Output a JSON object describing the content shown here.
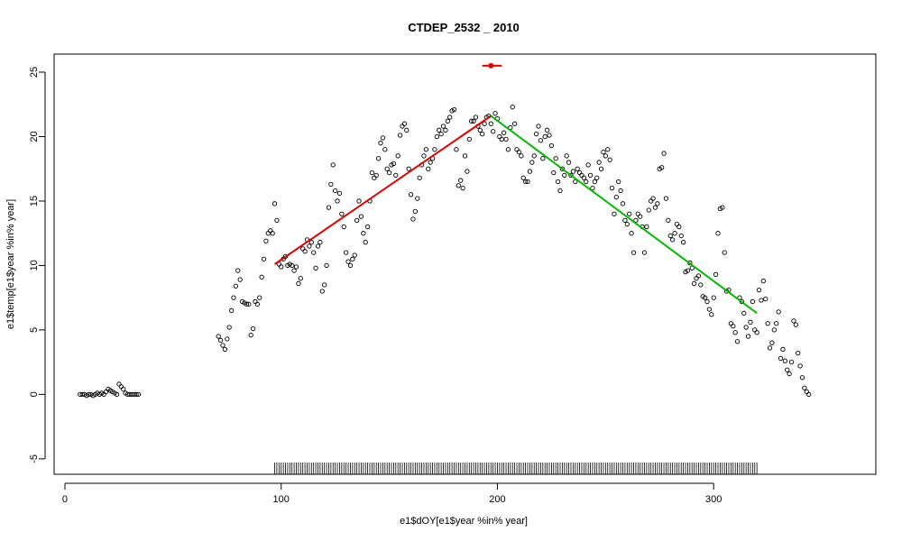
{
  "chart_data": {
    "type": "scatter",
    "title": "CTDEP_2532 _ 2010",
    "xlabel": "e1$dOY[e1$year %in% year]",
    "ylabel": "e1$temp[e1$year %in% year]",
    "xlim": [
      -5,
      375
    ],
    "ylim": [
      -6.2,
      26.4
    ],
    "x_ticks": [
      0,
      100,
      200,
      300
    ],
    "y_ticks": [
      -5,
      0,
      5,
      10,
      15,
      20,
      25
    ],
    "grid": false,
    "legend": "none",
    "colors": {
      "points": "#000000",
      "rise": "#dd0000",
      "fall": "#00bb00",
      "marker": "#dd0000",
      "rug": "#000000"
    },
    "series": [
      {
        "type": "scatter",
        "points": [
          [
            7,
            0.0
          ],
          [
            8,
            0.0
          ],
          [
            9,
            0.0
          ],
          [
            10,
            -0.1
          ],
          [
            11,
            0.0
          ],
          [
            12,
            0.0
          ],
          [
            13,
            -0.1
          ],
          [
            14,
            0.0
          ],
          [
            15,
            0.1
          ],
          [
            16,
            0.0
          ],
          [
            17,
            0.1
          ],
          [
            18,
            0.0
          ],
          [
            19,
            0.2
          ],
          [
            20,
            0.4
          ],
          [
            21,
            0.3
          ],
          [
            22,
            0.2
          ],
          [
            23,
            0.1
          ],
          [
            24,
            0.0
          ],
          [
            25,
            0.8
          ],
          [
            26,
            0.6
          ],
          [
            27,
            0.4
          ],
          [
            28,
            0.1
          ],
          [
            29,
            0.0
          ],
          [
            30,
            0.0
          ],
          [
            31,
            0.0
          ],
          [
            32,
            0.0
          ],
          [
            33,
            0.0
          ],
          [
            34,
            0.0
          ],
          [
            71,
            4.5
          ],
          [
            72,
            4.2
          ],
          [
            73,
            3.8
          ],
          [
            74,
            3.5
          ],
          [
            75,
            4.3
          ],
          [
            76,
            5.2
          ],
          [
            77,
            6.5
          ],
          [
            78,
            7.5
          ],
          [
            79,
            8.4
          ],
          [
            80,
            9.6
          ],
          [
            81,
            8.9
          ],
          [
            82,
            7.2
          ],
          [
            83,
            7.1
          ],
          [
            84,
            7.0
          ],
          [
            85,
            7.0
          ],
          [
            86,
            4.6
          ],
          [
            87,
            5.1
          ],
          [
            88,
            7.2
          ],
          [
            89,
            7.0
          ],
          [
            90,
            7.5
          ],
          [
            91,
            9.1
          ],
          [
            92,
            10.5
          ],
          [
            93,
            11.9
          ],
          [
            94,
            12.5
          ],
          [
            95,
            12.7
          ],
          [
            96,
            12.5
          ],
          [
            97,
            14.8
          ],
          [
            98,
            13.5
          ],
          [
            99,
            10.1
          ],
          [
            100,
            9.9
          ],
          [
            101,
            10.5
          ],
          [
            102,
            10.7
          ],
          [
            103,
            10.0
          ],
          [
            104,
            10.1
          ],
          [
            105,
            10.0
          ],
          [
            106,
            9.6
          ],
          [
            107,
            9.9
          ],
          [
            108,
            8.6
          ],
          [
            109,
            9.0
          ],
          [
            110,
            11.3
          ],
          [
            111,
            11.1
          ],
          [
            112,
            12.0
          ],
          [
            113,
            11.5
          ],
          [
            114,
            11.8
          ],
          [
            115,
            11.0
          ],
          [
            116,
            9.8
          ],
          [
            117,
            11.5
          ],
          [
            118,
            11.8
          ],
          [
            119,
            8.0
          ],
          [
            120,
            8.5
          ],
          [
            121,
            10.0
          ],
          [
            122,
            14.5
          ],
          [
            123,
            16.3
          ],
          [
            124,
            17.8
          ],
          [
            125,
            15.8
          ],
          [
            126,
            15.0
          ],
          [
            127,
            15.6
          ],
          [
            128,
            14.0
          ],
          [
            129,
            13.0
          ],
          [
            130,
            11.0
          ],
          [
            131,
            10.3
          ],
          [
            132,
            10.0
          ],
          [
            133,
            10.5
          ],
          [
            134,
            10.8
          ],
          [
            135,
            13.5
          ],
          [
            136,
            15.0
          ],
          [
            137,
            13.8
          ],
          [
            138,
            12.5
          ],
          [
            139,
            11.8
          ],
          [
            140,
            13.0
          ],
          [
            141,
            15.0
          ],
          [
            142,
            17.2
          ],
          [
            143,
            16.8
          ],
          [
            144,
            17.0
          ],
          [
            145,
            18.3
          ],
          [
            146,
            19.5
          ],
          [
            147,
            19.9
          ],
          [
            148,
            19.0
          ],
          [
            149,
            17.5
          ],
          [
            150,
            17.2
          ],
          [
            151,
            17.8
          ],
          [
            152,
            17.9
          ],
          [
            153,
            17.0
          ],
          [
            154,
            18.5
          ],
          [
            155,
            20.1
          ],
          [
            156,
            20.8
          ],
          [
            157,
            21.0
          ],
          [
            158,
            20.5
          ],
          [
            159,
            17.5
          ],
          [
            160,
            15.5
          ],
          [
            161,
            13.6
          ],
          [
            162,
            14.2
          ],
          [
            163,
            15.2
          ],
          [
            164,
            16.8
          ],
          [
            165,
            17.8
          ],
          [
            166,
            18.5
          ],
          [
            167,
            19.0
          ],
          [
            168,
            17.5
          ],
          [
            169,
            18.0
          ],
          [
            170,
            18.3
          ],
          [
            171,
            19.0
          ],
          [
            172,
            20.0
          ],
          [
            173,
            20.5
          ],
          [
            174,
            20.2
          ],
          [
            175,
            20.8
          ],
          [
            176,
            20.5
          ],
          [
            177,
            21.2
          ],
          [
            178,
            21.5
          ],
          [
            179,
            22.0
          ],
          [
            180,
            22.1
          ],
          [
            181,
            19.0
          ],
          [
            182,
            16.2
          ],
          [
            183,
            16.6
          ],
          [
            184,
            16.0
          ],
          [
            185,
            18.5
          ],
          [
            186,
            17.3
          ],
          [
            187,
            19.8
          ],
          [
            188,
            21.2
          ],
          [
            189,
            21.2
          ],
          [
            190,
            21.5
          ],
          [
            191,
            20.8
          ],
          [
            192,
            20.5
          ],
          [
            193,
            20.2
          ],
          [
            194,
            21.0
          ],
          [
            195,
            21.5
          ],
          [
            196,
            21.6
          ],
          [
            197,
            21.0
          ],
          [
            198,
            20.4
          ],
          [
            199,
            21.8
          ],
          [
            200,
            21.4
          ],
          [
            201,
            20.0
          ],
          [
            202,
            19.8
          ],
          [
            203,
            20.3
          ],
          [
            204,
            19.8
          ],
          [
            205,
            19.0
          ],
          [
            206,
            20.7
          ],
          [
            207,
            22.3
          ],
          [
            208,
            21.0
          ],
          [
            209,
            19.0
          ],
          [
            210,
            18.8
          ],
          [
            211,
            18.5
          ],
          [
            212,
            16.8
          ],
          [
            213,
            16.5
          ],
          [
            214,
            16.5
          ],
          [
            215,
            17.3
          ],
          [
            216,
            18.0
          ],
          [
            217,
            18.5
          ],
          [
            218,
            20.2
          ],
          [
            219,
            20.8
          ],
          [
            220,
            19.7
          ],
          [
            221,
            18.3
          ],
          [
            222,
            20.0
          ],
          [
            223,
            20.5
          ],
          [
            224,
            20.1
          ],
          [
            225,
            19.3
          ],
          [
            226,
            17.2
          ],
          [
            227,
            18.3
          ],
          [
            228,
            16.5
          ],
          [
            229,
            15.8
          ],
          [
            230,
            17.5
          ],
          [
            231,
            17.0
          ],
          [
            232,
            18.5
          ],
          [
            233,
            18.0
          ],
          [
            234,
            17.0
          ],
          [
            235,
            17.3
          ],
          [
            236,
            16.5
          ],
          [
            237,
            17.5
          ],
          [
            238,
            17.2
          ],
          [
            239,
            17.0
          ],
          [
            240,
            16.8
          ],
          [
            241,
            16.5
          ],
          [
            242,
            17.8
          ],
          [
            243,
            17.0
          ],
          [
            244,
            16.0
          ],
          [
            245,
            16.5
          ],
          [
            246,
            16.8
          ],
          [
            247,
            18.0
          ],
          [
            248,
            17.5
          ],
          [
            249,
            18.8
          ],
          [
            250,
            18.5
          ],
          [
            251,
            19.0
          ],
          [
            252,
            18.2
          ],
          [
            253,
            16.0
          ],
          [
            254,
            14.0
          ],
          [
            255,
            15.3
          ],
          [
            256,
            16.5
          ],
          [
            257,
            15.8
          ],
          [
            258,
            14.8
          ],
          [
            259,
            13.5
          ],
          [
            260,
            13.2
          ],
          [
            261,
            14.0
          ],
          [
            262,
            12.5
          ],
          [
            263,
            11.0
          ],
          [
            264,
            13.5
          ],
          [
            265,
            14.0
          ],
          [
            266,
            13.8
          ],
          [
            267,
            13.0
          ],
          [
            268,
            11.0
          ],
          [
            269,
            13.0
          ],
          [
            270,
            14.3
          ],
          [
            271,
            15.0
          ],
          [
            272,
            15.2
          ],
          [
            273,
            14.5
          ],
          [
            274,
            14.8
          ],
          [
            275,
            17.5
          ],
          [
            276,
            17.6
          ],
          [
            277,
            18.7
          ],
          [
            278,
            15.2
          ],
          [
            279,
            13.5
          ],
          [
            280,
            12.3
          ],
          [
            281,
            12.0
          ],
          [
            282,
            12.5
          ],
          [
            283,
            13.2
          ],
          [
            284,
            13.0
          ],
          [
            285,
            12.3
          ],
          [
            286,
            11.8
          ],
          [
            287,
            9.5
          ],
          [
            288,
            9.6
          ],
          [
            289,
            10.2
          ],
          [
            290,
            9.8
          ],
          [
            291,
            8.6
          ],
          [
            292,
            9.0
          ],
          [
            293,
            9.2
          ],
          [
            294,
            8.5
          ],
          [
            295,
            7.6
          ],
          [
            296,
            7.5
          ],
          [
            297,
            7.2
          ],
          [
            298,
            6.6
          ],
          [
            299,
            6.2
          ],
          [
            300,
            7.5
          ],
          [
            301,
            9.3
          ],
          [
            302,
            12.5
          ],
          [
            303,
            14.4
          ],
          [
            304,
            14.5
          ],
          [
            305,
            11.0
          ],
          [
            306,
            8.0
          ],
          [
            307,
            8.1
          ],
          [
            308,
            5.5
          ],
          [
            309,
            5.3
          ],
          [
            310,
            4.8
          ],
          [
            311,
            4.1
          ],
          [
            312,
            7.5
          ],
          [
            313,
            7.2
          ],
          [
            314,
            6.3
          ],
          [
            315,
            5.2
          ],
          [
            316,
            4.5
          ],
          [
            317,
            5.6
          ],
          [
            318,
            7.2
          ],
          [
            319,
            5.0
          ],
          [
            320,
            4.8
          ],
          [
            321,
            8.1
          ],
          [
            322,
            7.3
          ],
          [
            323,
            8.8
          ],
          [
            324,
            7.4
          ],
          [
            325,
            5.5
          ],
          [
            326,
            3.6
          ],
          [
            327,
            4.0
          ],
          [
            328,
            5.0
          ],
          [
            329,
            5.5
          ],
          [
            330,
            6.4
          ],
          [
            331,
            2.8
          ],
          [
            332,
            3.5
          ],
          [
            333,
            2.6
          ],
          [
            334,
            1.9
          ],
          [
            335,
            1.6
          ],
          [
            336,
            2.5
          ],
          [
            337,
            5.7
          ],
          [
            338,
            5.4
          ],
          [
            339,
            3.2
          ],
          [
            340,
            2.2
          ],
          [
            341,
            1.3
          ],
          [
            342,
            0.5
          ],
          [
            343,
            0.2
          ],
          [
            344,
            0.0
          ]
        ]
      },
      {
        "type": "line",
        "role": "rise",
        "x": [
          97,
          197
        ],
        "y": [
          10.1,
          21.6
        ]
      },
      {
        "type": "line",
        "role": "fall",
        "x": [
          197,
          320
        ],
        "y": [
          21.6,
          6.3
        ]
      },
      {
        "type": "segment",
        "role": "marker",
        "x": [
          193,
          202
        ],
        "y": [
          25.5,
          25.5
        ],
        "point_x": 197
      }
    ],
    "rug_x_range": [
      97,
      320
    ]
  }
}
